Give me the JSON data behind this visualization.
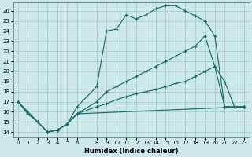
{
  "xlabel": "Humidex (Indice chaleur)",
  "background_color": "#cce8e8",
  "grid_color": "#aacccc",
  "line_color": "#1a6e6a",
  "xlim": [
    -0.5,
    23.5
  ],
  "ylim": [
    13.5,
    26.8
  ],
  "xtick_vals": [
    0,
    1,
    2,
    3,
    4,
    5,
    6,
    8,
    9,
    10,
    11,
    12,
    13,
    14,
    15,
    16,
    17,
    18,
    19,
    20,
    21,
    22,
    23
  ],
  "xtick_labels": [
    "0",
    "1",
    "2",
    "3",
    "4",
    "5",
    "6",
    "8",
    "9",
    "10",
    "11",
    "12",
    "13",
    "14",
    "15",
    "16",
    "17",
    "18",
    "19",
    "20",
    "21",
    "22",
    "23"
  ],
  "ytick_vals": [
    14,
    15,
    16,
    17,
    18,
    19,
    20,
    21,
    22,
    23,
    24,
    25,
    26
  ],
  "curves": [
    {
      "x": [
        0,
        1,
        2,
        3,
        4,
        5,
        6,
        8,
        9,
        10,
        11,
        12,
        13,
        14,
        15,
        16,
        17,
        18,
        19,
        20,
        21,
        22,
        23
      ],
      "y": [
        17,
        15.8,
        15,
        14,
        14.2,
        14.8,
        16.5,
        18.5,
        24,
        24.2,
        25.6,
        25.2,
        25.6,
        26.2,
        26.5,
        26.5,
        26.0,
        25.5,
        25.0,
        23.5,
        16.5,
        16.5,
        16.5
      ],
      "ls": "-"
    },
    {
      "x": [
        0,
        1,
        2,
        3,
        4,
        5,
        6,
        8,
        9,
        10,
        11,
        12,
        13,
        14,
        15,
        16,
        17,
        18,
        19,
        20,
        21,
        22,
        23
      ],
      "y": [
        17,
        15.8,
        15,
        14,
        14.2,
        14.8,
        15.8,
        17.0,
        18.0,
        18.5,
        19.0,
        19.5,
        20.0,
        20.5,
        21.0,
        21.5,
        22.0,
        22.5,
        23.5,
        20.5,
        19.0,
        16.5,
        16.5
      ],
      "ls": "-"
    },
    {
      "x": [
        0,
        2,
        3,
        4,
        5,
        6,
        8,
        9,
        10,
        11,
        12,
        13,
        14,
        15,
        16,
        17,
        18,
        19,
        20,
        21,
        22,
        23
      ],
      "y": [
        17,
        15,
        14,
        14.2,
        14.8,
        15.8,
        16.5,
        16.8,
        17.2,
        17.5,
        17.8,
        18.0,
        18.2,
        18.5,
        18.8,
        19.0,
        19.5,
        20.0,
        20.5,
        16.5,
        16.5,
        16.5
      ],
      "ls": "-"
    },
    {
      "x": [
        0,
        2,
        3,
        4,
        5,
        6,
        23
      ],
      "y": [
        17,
        15,
        14,
        14.2,
        14.8,
        15.8,
        16.5
      ],
      "ls": "-"
    }
  ]
}
